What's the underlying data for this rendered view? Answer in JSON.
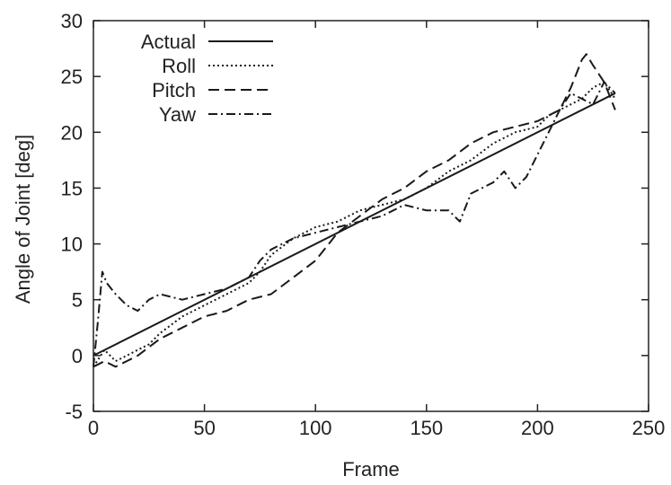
{
  "chart_data": {
    "type": "line",
    "title": "",
    "xlabel": "Frame",
    "ylabel": "Angle of Joint [deg]",
    "xlim": [
      0,
      250
    ],
    "ylim": [
      -5,
      30
    ],
    "xticks": [
      0,
      50,
      100,
      150,
      200,
      250
    ],
    "yticks": [
      -5,
      0,
      5,
      10,
      15,
      20,
      25,
      30
    ],
    "grid": false,
    "legend_position": "top-left",
    "series": [
      {
        "name": "Actual",
        "style": "solid",
        "x": [
          0,
          235
        ],
        "y": [
          0,
          23.5
        ]
      },
      {
        "name": "Roll",
        "style": "dotted",
        "x": [
          0,
          5,
          10,
          15,
          20,
          25,
          30,
          40,
          50,
          60,
          70,
          75,
          80,
          90,
          100,
          110,
          120,
          130,
          140,
          150,
          160,
          170,
          180,
          190,
          200,
          205,
          210,
          215,
          220,
          225,
          230,
          235
        ],
        "y": [
          -1,
          0.5,
          -0.5,
          0,
          0.5,
          1,
          2,
          3.5,
          4.5,
          5.5,
          6.5,
          7.5,
          9,
          10.5,
          11.5,
          12,
          13,
          13.5,
          14,
          15,
          16.5,
          17.5,
          19,
          20,
          20.5,
          21.5,
          22,
          22.5,
          23,
          24,
          24.5,
          23
        ]
      },
      {
        "name": "Pitch",
        "style": "dashed",
        "x": [
          0,
          5,
          10,
          15,
          20,
          30,
          40,
          50,
          60,
          70,
          80,
          90,
          100,
          110,
          120,
          130,
          140,
          150,
          160,
          170,
          180,
          190,
          200,
          205,
          210,
          215,
          220,
          222,
          225,
          230,
          235
        ],
        "y": [
          -1,
          -0.5,
          -1,
          -0.5,
          0,
          1.5,
          2.5,
          3.5,
          4,
          5,
          5.5,
          7,
          8.5,
          11,
          12.5,
          14,
          15,
          16.5,
          17.5,
          19,
          20,
          20.5,
          21,
          21.5,
          22,
          24,
          26.5,
          27,
          26,
          24.5,
          22
        ]
      },
      {
        "name": "Yaw",
        "style": "dashdot",
        "x": [
          0,
          2,
          4,
          6,
          10,
          15,
          20,
          25,
          30,
          40,
          50,
          60,
          70,
          75,
          80,
          90,
          100,
          110,
          120,
          130,
          140,
          150,
          160,
          165,
          170,
          180,
          185,
          190,
          195,
          200,
          205,
          210,
          215,
          220,
          225,
          230,
          235
        ],
        "y": [
          -1,
          3,
          7.5,
          6.5,
          5.5,
          4.5,
          4,
          5,
          5.5,
          5,
          5.5,
          6,
          7,
          8.5,
          9.5,
          10.5,
          11,
          11.5,
          12,
          12.5,
          13.5,
          13,
          13,
          12,
          14.5,
          15.5,
          16.5,
          15,
          16,
          18,
          20,
          22,
          23.5,
          23,
          22.5,
          24.5,
          23.5
        ]
      }
    ]
  }
}
